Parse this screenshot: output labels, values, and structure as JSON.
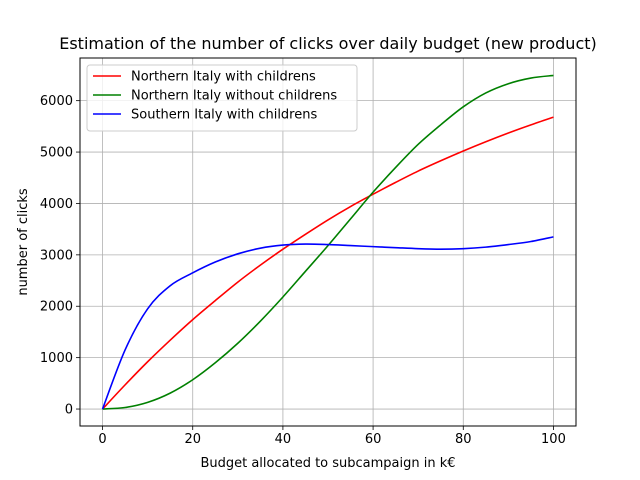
{
  "chart_data": {
    "type": "line",
    "title": "Estimation of the number of clicks over daily budget (new product)",
    "xlabel": "Budget allocated to subcampaign in k€",
    "ylabel": "number of clicks",
    "xlim": [
      -5,
      105
    ],
    "ylim": [
      -330,
      6830
    ],
    "xticks": [
      0,
      20,
      40,
      60,
      80,
      100
    ],
    "yticks": [
      0,
      1000,
      2000,
      3000,
      4000,
      5000,
      6000
    ],
    "grid": true,
    "legend_position": "upper-left",
    "x": [
      0,
      5,
      10,
      15,
      20,
      25,
      30,
      35,
      40,
      45,
      50,
      55,
      60,
      65,
      70,
      75,
      80,
      85,
      90,
      95,
      100
    ],
    "series": [
      {
        "name": "Northern Italy with childrens",
        "color": "#ff0000",
        "values": [
          0,
          470,
          920,
          1340,
          1740,
          2110,
          2470,
          2800,
          3110,
          3400,
          3680,
          3940,
          4180,
          4410,
          4630,
          4830,
          5020,
          5200,
          5370,
          5530,
          5680
        ]
      },
      {
        "name": "Northern Italy without childrens",
        "color": "#008000",
        "values": [
          0,
          30,
          130,
          310,
          570,
          900,
          1280,
          1710,
          2180,
          2680,
          3180,
          3700,
          4220,
          4700,
          5150,
          5530,
          5880,
          6150,
          6330,
          6440,
          6490
        ]
      },
      {
        "name": "Southern Italy with childrens",
        "color": "#0000ff",
        "values": [
          0,
          1150,
          1950,
          2400,
          2650,
          2860,
          3020,
          3130,
          3190,
          3210,
          3200,
          3180,
          3160,
          3140,
          3120,
          3110,
          3120,
          3150,
          3200,
          3260,
          3350
        ]
      }
    ]
  }
}
